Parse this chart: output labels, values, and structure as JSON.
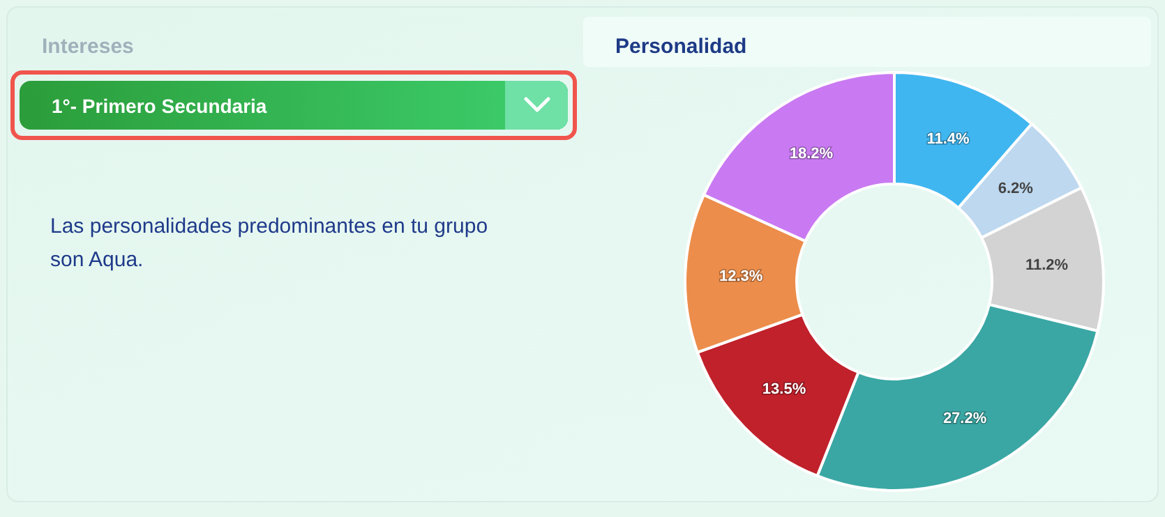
{
  "chart_data": {
    "type": "donut",
    "title": "Personalidad",
    "categories": [
      null,
      null,
      null,
      null,
      null,
      null,
      null
    ],
    "values": [
      11.4,
      6.2,
      11.2,
      27.2,
      13.5,
      12.3,
      18.2
    ],
    "value_labels": [
      "11.4%",
      "6.2%",
      "11.2%",
      "27.2%",
      "13.5%",
      "12.3%",
      "18.2%"
    ],
    "colors": [
      "#40b6f0",
      "#bdd8ef",
      "#d3d3d3",
      "#3aa7a4",
      "#c0212b",
      "#ec8d4b",
      "#c97af2"
    ],
    "annotations": [
      "Intereses",
      "1°- Primero Secundaria",
      "Las personalidades predominantes en tu grupo son Aqua."
    ]
  }
}
